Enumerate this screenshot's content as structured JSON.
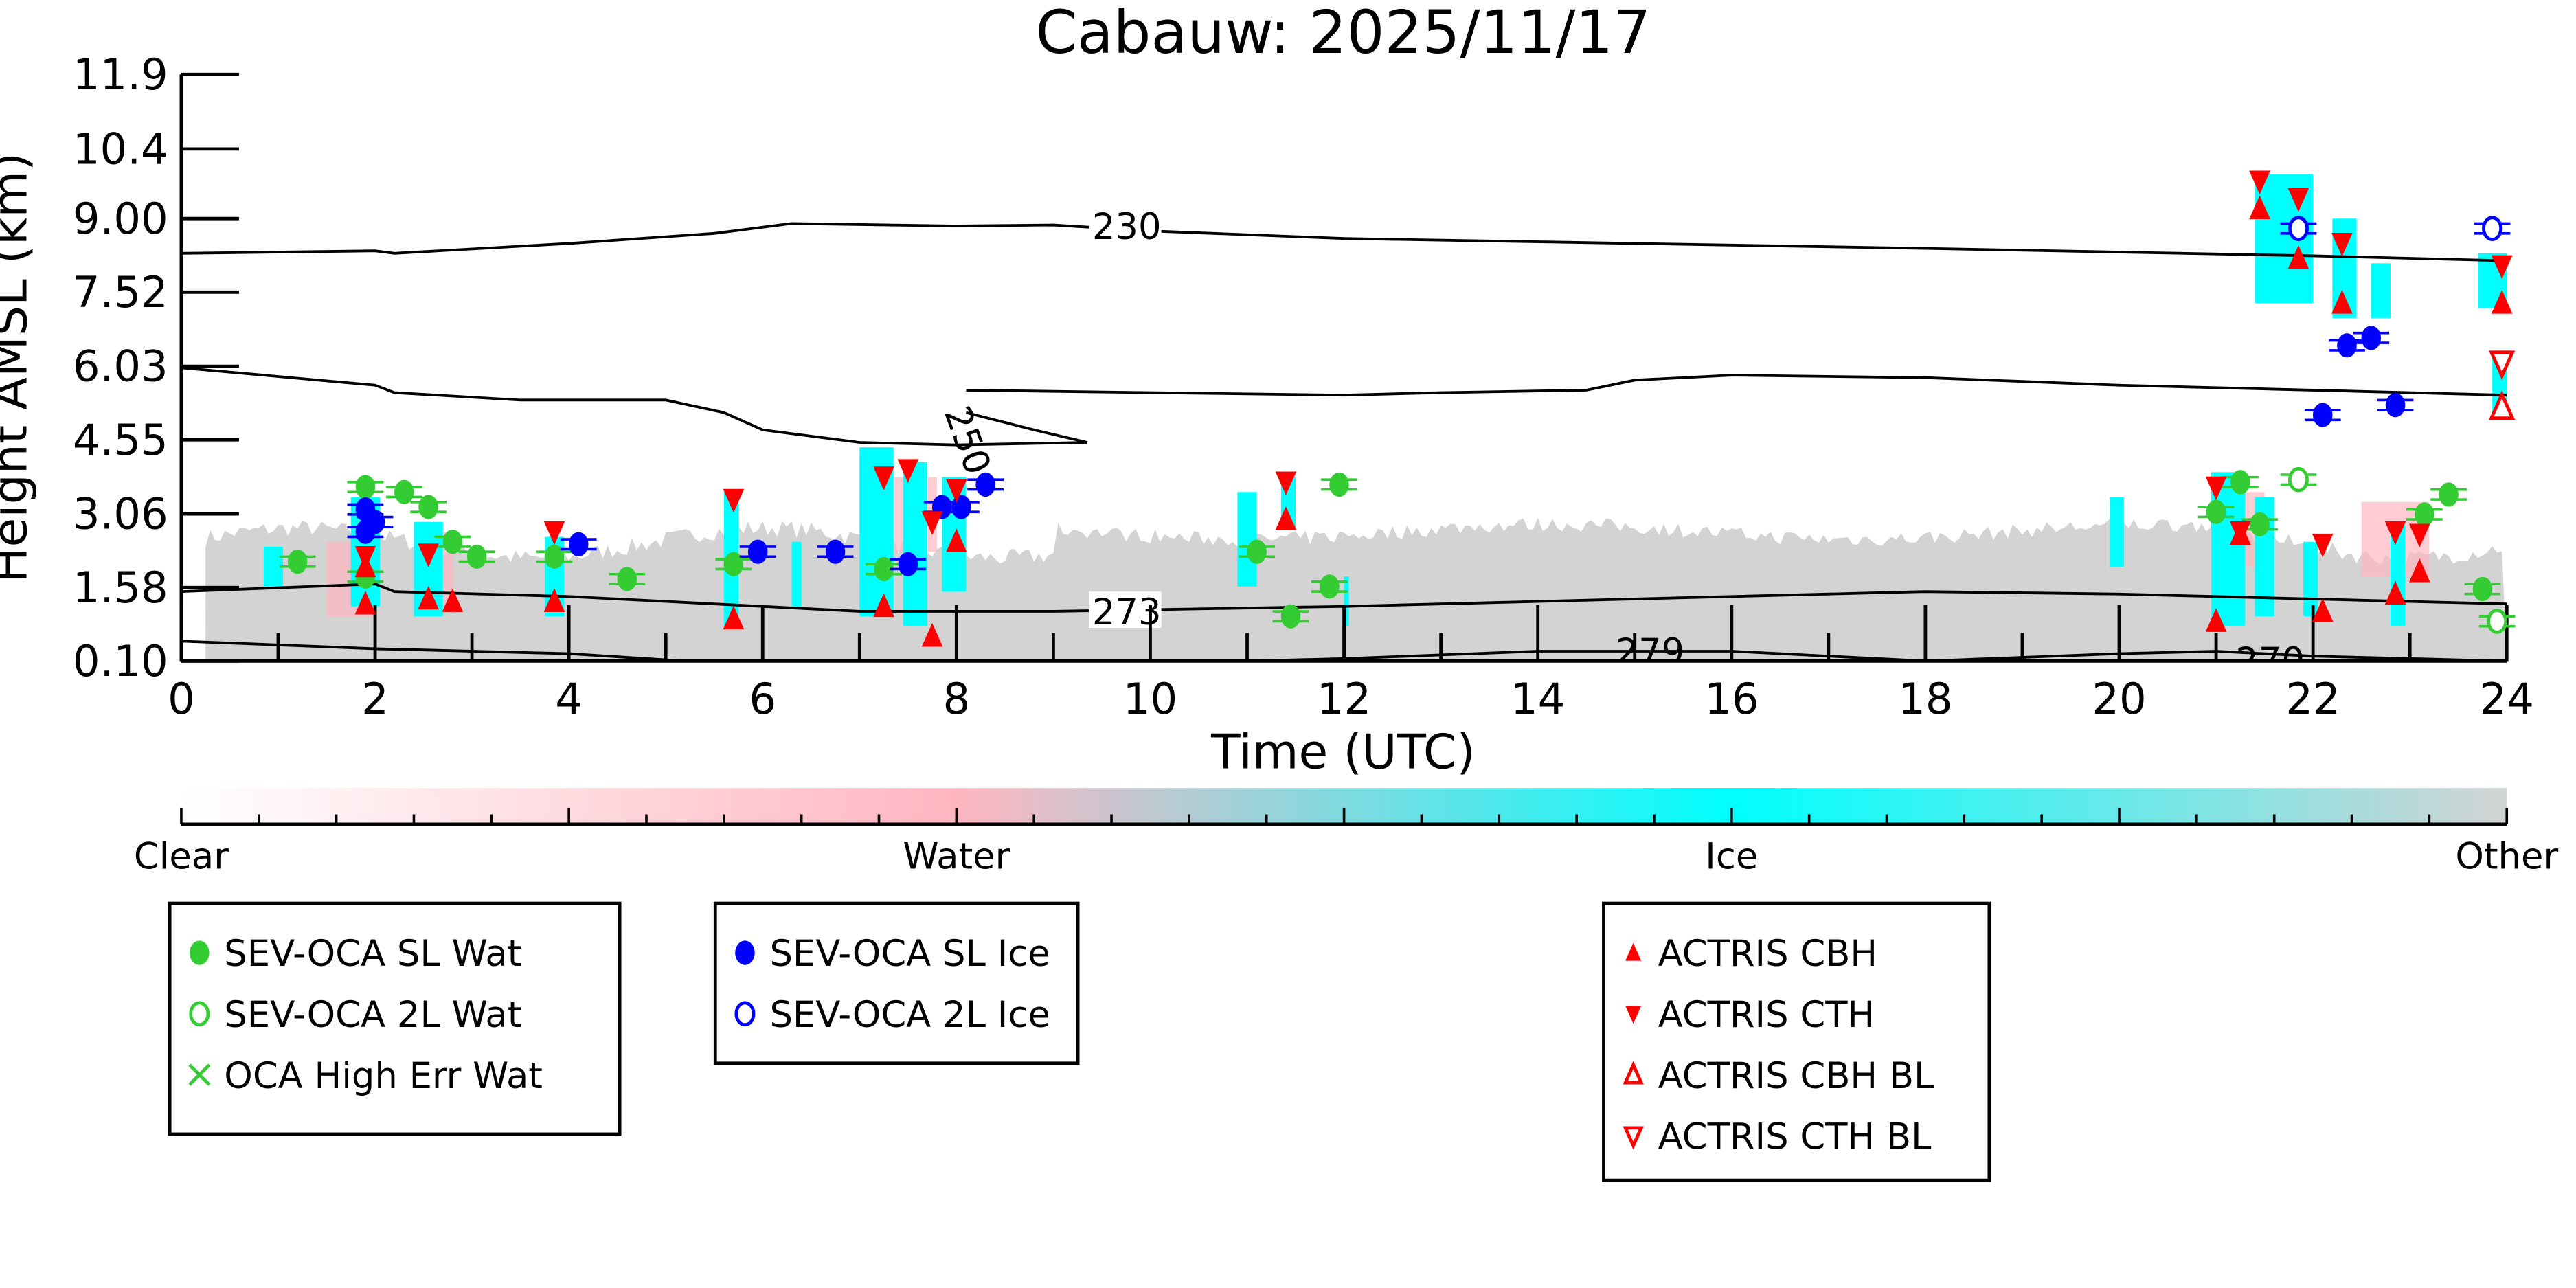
{
  "chart_data": {
    "type": "scatter",
    "title": "Cabauw: 2025/11/17",
    "xlabel": "Time (UTC)",
    "ylabel": "Height AMSL (km)",
    "xlim": [
      0,
      24
    ],
    "ylim": [
      0.1,
      11.9
    ],
    "xticks": [
      "0",
      "2",
      "4",
      "6",
      "8",
      "10",
      "12",
      "14",
      "16",
      "18",
      "20",
      "22",
      "24"
    ],
    "yticks": [
      "0.10",
      "1.58",
      "3.06",
      "4.55",
      "6.03",
      "7.52",
      "9.00",
      "10.4",
      "11.9"
    ],
    "ytick_values": [
      0.1,
      1.58,
      3.06,
      4.55,
      6.03,
      7.52,
      9.0,
      10.4,
      11.9
    ],
    "colorbar": {
      "labels": [
        "Clear",
        "Water",
        "Ice",
        "Other"
      ],
      "colors": [
        "#ffffff",
        "#ffb6c1",
        "#00ffff",
        "#d3d3d3"
      ]
    },
    "contours": [
      {
        "label": "230",
        "label_at": [
          9.4,
          8.85
        ],
        "points": [
          [
            0,
            8.3
          ],
          [
            2,
            8.35
          ],
          [
            2.2,
            8.3
          ],
          [
            4,
            8.5
          ],
          [
            5.5,
            8.7
          ],
          [
            6.3,
            8.9
          ],
          [
            8,
            8.85
          ],
          [
            9,
            8.87
          ],
          [
            10,
            8.75
          ],
          [
            12,
            8.6
          ],
          [
            15,
            8.5
          ],
          [
            18,
            8.4
          ],
          [
            22,
            8.25
          ],
          [
            24,
            8.15
          ]
        ]
      },
      {
        "label": "250",
        "label_at": [
          8.0,
          5.2
        ],
        "points": [
          [
            0,
            6.0
          ],
          [
            2,
            5.65
          ],
          [
            2.2,
            5.5
          ],
          [
            3.5,
            5.35
          ],
          [
            5,
            5.35
          ],
          [
            5.6,
            5.1
          ],
          [
            6,
            4.75
          ],
          [
            7,
            4.5
          ],
          [
            8,
            4.45
          ],
          [
            9.35,
            4.5
          ],
          [
            8.8,
            4.75
          ],
          [
            8.1,
            5.1
          ]
        ]
      },
      {
        "label": "",
        "label_at": null,
        "points": [
          [
            8.1,
            5.55
          ],
          [
            10,
            5.5
          ],
          [
            12,
            5.45
          ],
          [
            13,
            5.5
          ],
          [
            14.5,
            5.55
          ],
          [
            15,
            5.75
          ],
          [
            16,
            5.85
          ],
          [
            18,
            5.8
          ],
          [
            20,
            5.65
          ],
          [
            22,
            5.55
          ],
          [
            24,
            5.45
          ]
        ]
      },
      {
        "label": "273",
        "label_at": [
          9.4,
          1.1
        ],
        "points": [
          [
            0,
            1.5
          ],
          [
            2,
            1.65
          ],
          [
            2.2,
            1.5
          ],
          [
            4,
            1.4
          ],
          [
            7,
            1.1
          ],
          [
            9,
            1.1
          ],
          [
            12,
            1.2
          ],
          [
            14,
            1.3
          ],
          [
            16,
            1.4
          ],
          [
            18,
            1.5
          ],
          [
            20,
            1.45
          ],
          [
            22,
            1.35
          ],
          [
            24,
            1.25
          ]
        ]
      },
      {
        "label": "279",
        "label_at": [
          14.8,
          0.3
        ],
        "points": [
          [
            0,
            0.5
          ],
          [
            2,
            0.35
          ],
          [
            4,
            0.25
          ],
          [
            5.2,
            0.1
          ],
          [
            11,
            0.1
          ],
          [
            12,
            0.15
          ],
          [
            14,
            0.3
          ],
          [
            16,
            0.3
          ],
          [
            18,
            0.1
          ],
          [
            20,
            0.25
          ],
          [
            21,
            0.3
          ],
          [
            22,
            0.2
          ],
          [
            24,
            0.1
          ]
        ]
      },
      {
        "label": "270",
        "label_at": [
          21.2,
          0.12
        ],
        "points": []
      }
    ],
    "series": [
      {
        "name": "SEV-OCA SL Wat",
        "marker": "filled-circle",
        "color": "#33cc33",
        "points": [
          [
            1.2,
            2.1
          ],
          [
            1.9,
            3.6
          ],
          [
            1.9,
            1.8
          ],
          [
            2.3,
            3.5
          ],
          [
            2.55,
            3.2
          ],
          [
            2.8,
            2.5
          ],
          [
            3.05,
            2.2
          ],
          [
            3.85,
            2.2
          ],
          [
            4.6,
            1.75
          ],
          [
            5.7,
            2.05
          ],
          [
            7.25,
            1.95
          ],
          [
            11.1,
            2.3
          ],
          [
            11.45,
            1.0
          ],
          [
            11.85,
            1.6
          ],
          [
            11.95,
            3.65
          ],
          [
            21.0,
            3.1
          ],
          [
            21.25,
            3.7
          ],
          [
            21.45,
            2.85
          ],
          [
            23.15,
            3.05
          ],
          [
            23.4,
            3.45
          ],
          [
            23.75,
            1.55
          ]
        ]
      },
      {
        "name": "SEV-OCA 2L Wat",
        "marker": "open-circle",
        "color": "#33cc33",
        "points": [
          [
            21.85,
            3.75
          ],
          [
            23.9,
            0.9
          ]
        ]
      },
      {
        "name": "OCA High Err Wat",
        "marker": "x",
        "color": "#33cc33",
        "points": []
      },
      {
        "name": "SEV-OCA SL Ice",
        "marker": "filled-circle",
        "color": "#0000ff",
        "points": [
          [
            1.9,
            3.15
          ],
          [
            1.9,
            2.7
          ],
          [
            2.0,
            2.9
          ],
          [
            4.1,
            2.45
          ],
          [
            5.95,
            2.3
          ],
          [
            6.75,
            2.3
          ],
          [
            7.5,
            2.05
          ],
          [
            7.85,
            3.2
          ],
          [
            8.05,
            3.2
          ],
          [
            8.3,
            3.65
          ],
          [
            22.1,
            5.05
          ],
          [
            22.35,
            6.45
          ],
          [
            22.6,
            6.6
          ],
          [
            22.85,
            5.25
          ]
        ]
      },
      {
        "name": "SEV-OCA 2L Ice",
        "marker": "open-circle",
        "color": "#0000ff",
        "points": [
          [
            21.85,
            8.8
          ],
          [
            23.85,
            8.8
          ]
        ]
      },
      {
        "name": "ACTRIS CBH",
        "marker": "triangle-up",
        "color": "#ff0000",
        "points": [
          [
            1.9,
            1.25
          ],
          [
            1.9,
            2.0
          ],
          [
            2.55,
            1.35
          ],
          [
            2.8,
            1.3
          ],
          [
            3.85,
            1.3
          ],
          [
            5.7,
            0.95
          ],
          [
            7.25,
            1.2
          ],
          [
            7.75,
            0.6
          ],
          [
            8.0,
            2.5
          ],
          [
            11.4,
            2.95
          ],
          [
            21.0,
            0.9
          ],
          [
            21.25,
            2.65
          ],
          [
            21.85,
            8.2
          ],
          [
            21.45,
            9.2
          ],
          [
            22.3,
            7.3
          ],
          [
            22.1,
            1.1
          ],
          [
            22.85,
            1.45
          ],
          [
            23.1,
            1.9
          ],
          [
            23.95,
            7.3
          ]
        ]
      },
      {
        "name": "ACTRIS CTH",
        "marker": "triangle-down",
        "color": "#ff0000",
        "points": [
          [
            1.9,
            2.2
          ],
          [
            2.55,
            2.25
          ],
          [
            3.85,
            2.7
          ],
          [
            5.7,
            3.35
          ],
          [
            7.25,
            3.8
          ],
          [
            7.5,
            3.95
          ],
          [
            8.0,
            3.55
          ],
          [
            7.75,
            2.9
          ],
          [
            11.4,
            3.7
          ],
          [
            21.0,
            3.6
          ],
          [
            21.25,
            2.7
          ],
          [
            21.45,
            9.75
          ],
          [
            21.85,
            9.4
          ],
          [
            22.3,
            8.5
          ],
          [
            22.1,
            2.45
          ],
          [
            22.85,
            2.7
          ],
          [
            23.1,
            2.65
          ],
          [
            23.95,
            8.05
          ]
        ]
      },
      {
        "name": "ACTRIS CBH BL",
        "marker": "open-triangle-up",
        "color": "#ff0000",
        "points": [
          [
            23.95,
            5.2
          ]
        ]
      },
      {
        "name": "ACTRIS CTH BL",
        "marker": "open-triangle-down",
        "color": "#ff0000",
        "points": [
          [
            23.95,
            6.1
          ]
        ]
      }
    ],
    "legends": [
      [
        "SEV-OCA SL Wat",
        "SEV-OCA 2L Wat",
        "OCA High Err Wat"
      ],
      [
        "SEV-OCA SL Ice",
        "SEV-OCA 2L Ice"
      ],
      [
        "ACTRIS CBH",
        "ACTRIS CTH",
        "ACTRIS CBH BL",
        "ACTRIS CTH BL"
      ]
    ]
  }
}
